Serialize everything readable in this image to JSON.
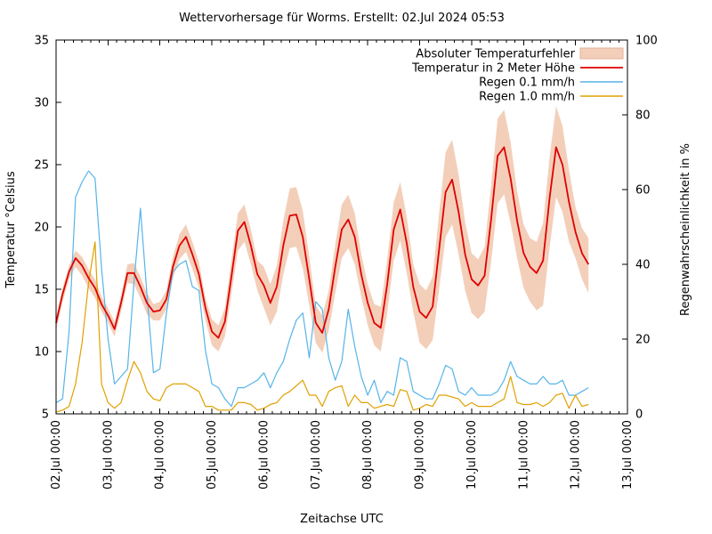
{
  "chart_data": {
    "type": "line",
    "title": "Wettervorhersage für Worms. Erstellt: 02.Jul 2024 05:53",
    "xlabel": "Zeitachse UTC",
    "ylabel_left": "Temperatur °Celsius",
    "ylabel_right": "Regenwahrscheinlichkeit in %",
    "ylim_left": [
      5,
      35
    ],
    "ylim_right": [
      0,
      100
    ],
    "y_ticks_left": [
      5,
      10,
      15,
      20,
      25,
      30,
      35
    ],
    "y_ticks_right": [
      0,
      20,
      40,
      60,
      80,
      100
    ],
    "x_tick_labels": [
      "02.Jul 00:00",
      "03.Jul 00:00",
      "04.Jul 00:00",
      "05.Jul 00:00",
      "06.Jul 00:00",
      "07.Jul 00:00",
      "08.Jul 00:00",
      "09.Jul 00:00",
      "10.Jul 00:00",
      "11.Jul 00:00",
      "12.Jul 00:00",
      "13.Jul 00:00"
    ],
    "x_minor_ticks_per_day": 5,
    "x_axis_days": 11,
    "time_start": "02.Jul 2024 00:00",
    "time_step_hours": 3,
    "legend": [
      {
        "label": "Absoluter Temperaturfehler",
        "color": "#f3cfba",
        "edge": "#e3b098",
        "style": "band"
      },
      {
        "label": "Temperatur in 2 Meter Höhe",
        "color": "#e00000",
        "style": "line"
      },
      {
        "label": "Regen 0.1 mm/h",
        "color": "#56b4e9",
        "style": "line"
      },
      {
        "label": "Regen 1.0 mm/h",
        "color": "#e0a000",
        "style": "line"
      }
    ],
    "series": [
      {
        "name": "Temperatur in 2 Meter Höhe",
        "axis": "left",
        "unit": "°C",
        "color": "#e00000",
        "values": [
          12.3,
          14.6,
          16.4,
          17.5,
          16.9,
          15.9,
          15.1,
          13.8,
          12.9,
          11.8,
          13.9,
          16.3,
          16.3,
          15.2,
          13.9,
          13.2,
          13.3,
          14.2,
          16.8,
          18.5,
          19.2,
          17.8,
          16.2,
          13.5,
          11.6,
          11.1,
          12.4,
          16.0,
          19.7,
          20.4,
          18.5,
          16.2,
          15.3,
          13.9,
          15.2,
          18.5,
          20.9,
          21.0,
          19.2,
          15.8,
          12.3,
          11.5,
          13.4,
          16.8,
          19.8,
          20.6,
          19.2,
          16.2,
          13.9,
          12.3,
          11.9,
          15.4,
          19.8,
          21.4,
          18.7,
          15.2,
          13.2,
          12.7,
          13.6,
          18.2,
          22.8,
          23.8,
          21.2,
          17.8,
          15.8,
          15.3,
          16.1,
          20.6,
          25.7,
          26.4,
          23.9,
          20.5,
          17.9,
          16.8,
          16.3,
          17.3,
          22.3,
          26.4,
          25.0,
          22.0,
          19.6,
          17.9,
          17.0
        ]
      },
      {
        "name": "Absoluter Temperaturfehler (oben)",
        "axis": "left",
        "unit": "°C",
        "color": "#f3cfba",
        "err_up": [
          0.5,
          0.5,
          0.5,
          0.6,
          0.7,
          0.7,
          0.7,
          0.6,
          0.6,
          0.6,
          0.6,
          0.7,
          0.8,
          0.8,
          0.8,
          0.6,
          0.7,
          0.7,
          0.8,
          0.9,
          1.0,
          1.0,
          1.0,
          0.8,
          1.0,
          1.0,
          1.1,
          1.3,
          1.4,
          1.4,
          1.3,
          1.1,
          1.5,
          1.5,
          1.7,
          2.0,
          2.2,
          2.2,
          2.1,
          1.8,
          1.4,
          1.4,
          1.5,
          1.8,
          2.0,
          2.0,
          1.9,
          1.6,
          1.5,
          1.5,
          1.7,
          2.0,
          2.2,
          2.2,
          2.1,
          1.8,
          2.2,
          2.2,
          2.4,
          2.9,
          3.2,
          3.2,
          3.0,
          2.6,
          2.1,
          2.1,
          2.3,
          2.7,
          3.0,
          3.0,
          2.9,
          2.4,
          2.3,
          2.3,
          2.5,
          3.0,
          3.3,
          3.3,
          3.1,
          2.6,
          2.0,
          2.0,
          2.1
        ],
        "err_down": [
          0.6,
          0.6,
          0.6,
          0.7,
          0.8,
          0.8,
          0.8,
          0.6,
          0.6,
          0.6,
          0.7,
          0.8,
          0.9,
          0.9,
          0.9,
          0.7,
          0.8,
          0.8,
          0.9,
          1.1,
          1.2,
          1.2,
          1.1,
          1.0,
          1.1,
          1.1,
          1.2,
          1.4,
          1.6,
          1.6,
          1.5,
          1.3,
          1.8,
          1.8,
          2.0,
          2.3,
          2.6,
          2.6,
          2.5,
          2.1,
          1.6,
          1.6,
          1.7,
          2.1,
          2.3,
          2.3,
          2.2,
          1.8,
          1.8,
          1.8,
          1.9,
          2.3,
          2.5,
          2.5,
          2.4,
          2.0,
          2.5,
          2.5,
          2.7,
          3.2,
          3.6,
          3.6,
          3.4,
          2.9,
          2.7,
          2.7,
          2.9,
          3.4,
          3.8,
          3.8,
          3.6,
          3.0,
          2.8,
          2.8,
          3.0,
          3.6,
          4.0,
          4.0,
          3.8,
          3.2,
          2.1,
          2.1,
          2.3
        ]
      },
      {
        "name": "Regen 0.1 mm/h",
        "axis": "right",
        "unit": "%",
        "color": "#56b4e9",
        "values": [
          3,
          4,
          22,
          58,
          62,
          65,
          63,
          39,
          20,
          8,
          10,
          12,
          35,
          55,
          32,
          11,
          12,
          27,
          38,
          40,
          41,
          34,
          33,
          17,
          8,
          7,
          4,
          2,
          7,
          7,
          8,
          9,
          11,
          7,
          11,
          14,
          20,
          25,
          27,
          15,
          30,
          28,
          15,
          9,
          14,
          28,
          18,
          10,
          5,
          9,
          3,
          6,
          5,
          15,
          14,
          6,
          5,
          4,
          4,
          8,
          13,
          12,
          6,
          5,
          7,
          5,
          5,
          5,
          6,
          9,
          14,
          10,
          9,
          8,
          8,
          10,
          8,
          8,
          9,
          5,
          5,
          6,
          7
        ]
      },
      {
        "name": "Regen 1.0 mm/h",
        "axis": "right",
        "unit": "%",
        "color": "#e0a000",
        "values": [
          0.5,
          1,
          2,
          8,
          19,
          35,
          46,
          8,
          3,
          1.5,
          3,
          9,
          14,
          11,
          6,
          4,
          3.5,
          7,
          8,
          8,
          8,
          7,
          6,
          2,
          2,
          1,
          1,
          1,
          3,
          3,
          2.5,
          1,
          1.5,
          2.5,
          3,
          5,
          6,
          7.5,
          9,
          5,
          5,
          2,
          6,
          7,
          7.5,
          2,
          5,
          3,
          3,
          1.5,
          2,
          2.5,
          2,
          6.5,
          6,
          1,
          1.5,
          2.5,
          2,
          5,
          5,
          4.5,
          4,
          2,
          3,
          2,
          2,
          2,
          3,
          4,
          10,
          3,
          2.5,
          2.5,
          3,
          2,
          3,
          5,
          5.5,
          1.5,
          5,
          2,
          2.5
        ]
      }
    ]
  }
}
